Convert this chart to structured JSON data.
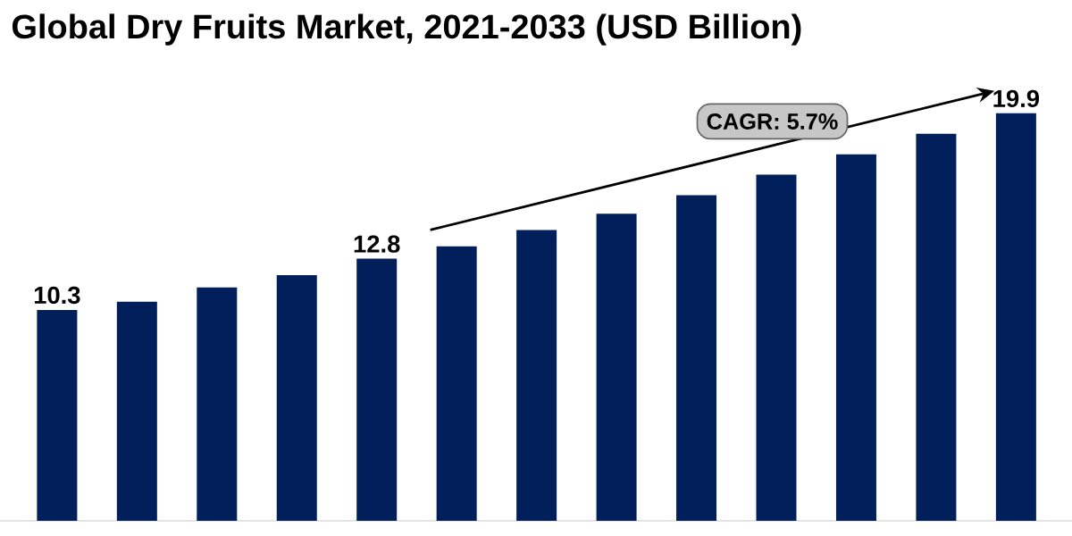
{
  "chart_data": {
    "type": "bar",
    "title": "Global Dry Fruits Market, 2021-2033 (USD Billion)",
    "categories": [
      null,
      null,
      null,
      null,
      null,
      null,
      null,
      null,
      null,
      null,
      null,
      null,
      null
    ],
    "values": [
      10.3,
      10.7,
      11.4,
      12.0,
      12.8,
      13.4,
      14.2,
      15.0,
      15.9,
      16.9,
      17.9,
      18.9,
      19.9
    ],
    "value_labels": [
      "10.3",
      null,
      null,
      null,
      "12.8",
      null,
      null,
      null,
      null,
      null,
      null,
      null,
      "19.9"
    ],
    "color": "#001f5b",
    "annotations": [
      "CAGR: 5.7%"
    ]
  }
}
